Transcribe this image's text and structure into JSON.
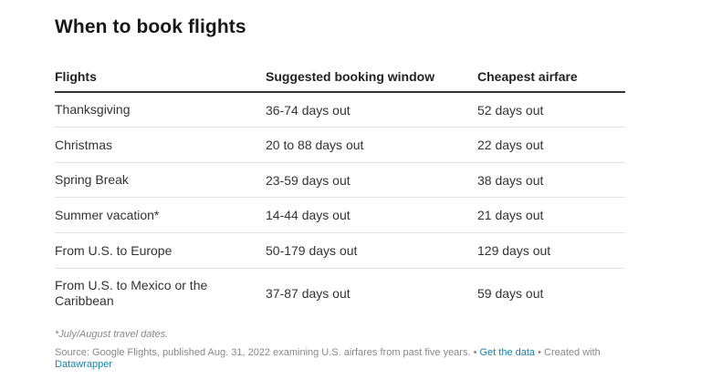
{
  "title": "When to book flights",
  "chart_data": {
    "type": "table",
    "columns": [
      "Flights",
      "Suggested booking window",
      "Cheapest airfare"
    ],
    "rows": [
      [
        "Thanksgiving",
        "36-74 days out",
        "52 days out"
      ],
      [
        "Christmas",
        "20 to 88 days out",
        "22 days out"
      ],
      [
        "Spring Break",
        "23-59 days out",
        "38 days out"
      ],
      [
        "Summer vacation*",
        "14-44 days out",
        "21 days out"
      ],
      [
        "From U.S. to Europe",
        "50-179 days out",
        "129 days out"
      ],
      [
        "From U.S. to Mexico or the Caribbean",
        "37-87 days out",
        "59 days out"
      ]
    ]
  },
  "notes": {
    "footnote": "*July/August travel dates.",
    "source": "Source: Google Flights, published Aug. 31, 2022 examining U.S. airfares from past five years.",
    "separator": " • ",
    "get_data": "Get the data",
    "created_with": " • Created with ",
    "datawrapper": "Datawrapper"
  },
  "colors": {
    "text": "#333333",
    "header_rule": "#333333",
    "row_rule": "#e3e3e3",
    "note": "#888888",
    "link": "#1d81a2"
  }
}
